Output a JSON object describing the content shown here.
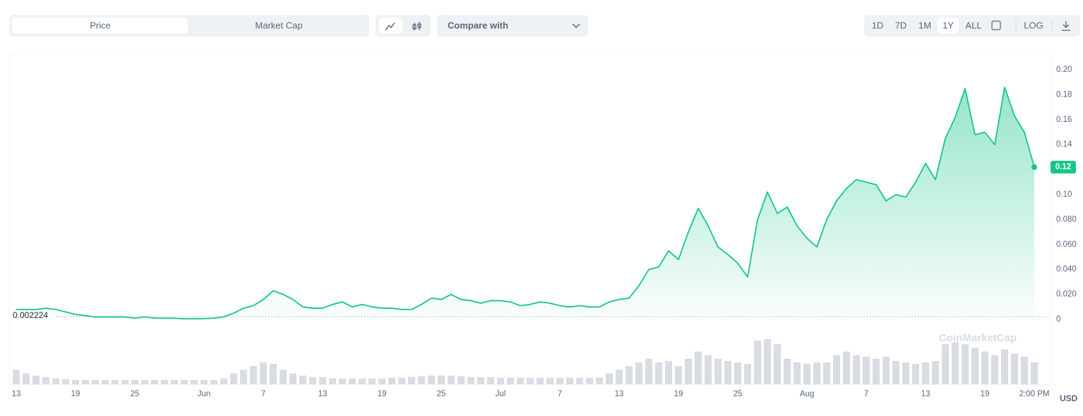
{
  "toolbar": {
    "tabs": [
      "Price",
      "Market Cap"
    ],
    "compare": "Compare with",
    "ranges": [
      "1D",
      "7D",
      "1M",
      "1Y",
      "ALL"
    ],
    "log": "LOG",
    "active_range": "1Y"
  },
  "chart_data": {
    "type": "area",
    "currency": "USD",
    "watermark": "CoinMarketCap",
    "categories": [
      "13",
      null,
      null,
      null,
      null,
      null,
      "19",
      null,
      null,
      null,
      null,
      null,
      "25",
      null,
      null,
      null,
      null,
      null,
      null,
      "Jun",
      null,
      null,
      null,
      null,
      null,
      "7",
      null,
      null,
      null,
      null,
      null,
      "13",
      null,
      null,
      null,
      null,
      null,
      "19",
      null,
      null,
      null,
      null,
      null,
      "25",
      null,
      null,
      null,
      null,
      null,
      "Jul",
      null,
      null,
      null,
      null,
      null,
      "7",
      null,
      null,
      null,
      null,
      null,
      "13",
      null,
      null,
      null,
      null,
      null,
      "19",
      null,
      null,
      null,
      null,
      null,
      "25",
      null,
      null,
      null,
      null,
      null,
      null,
      "Aug",
      null,
      null,
      null,
      null,
      null,
      "7",
      null,
      null,
      null,
      null,
      null,
      "13",
      null,
      null,
      null,
      null,
      null,
      "19",
      null,
      null,
      null,
      null,
      "2:00 PM"
    ],
    "series": [
      {
        "name": "Price",
        "color": "#16c784",
        "below_color": "#ea3943",
        "values": [
          0.008,
          0.008,
          0.008,
          0.009,
          0.008,
          0.006,
          0.004,
          0.003,
          0.002,
          0.002,
          0.002,
          0.002,
          0.001,
          0.002,
          0.001,
          0.001,
          0.001,
          0.0005,
          0.0005,
          0.0006,
          0.001,
          0.002,
          0.005,
          0.009,
          0.011,
          0.016,
          0.023,
          0.02,
          0.016,
          0.01,
          0.009,
          0.009,
          0.012,
          0.014,
          0.01,
          0.012,
          0.01,
          0.009,
          0.009,
          0.008,
          0.008,
          0.012,
          0.017,
          0.016,
          0.02,
          0.016,
          0.015,
          0.013,
          0.015,
          0.015,
          0.014,
          0.011,
          0.012,
          0.014,
          0.013,
          0.011,
          0.01,
          0.011,
          0.01,
          0.01,
          0.014,
          0.016,
          0.017,
          0.027,
          0.04,
          0.042,
          0.055,
          0.048,
          0.07,
          0.089,
          0.075,
          0.058,
          0.052,
          0.045,
          0.034,
          0.08,
          0.102,
          0.085,
          0.09,
          0.075,
          0.065,
          0.058,
          0.08,
          0.095,
          0.105,
          0.112,
          0.11,
          0.108,
          0.095,
          0.1,
          0.098,
          0.11,
          0.125,
          0.112,
          0.145,
          0.162,
          0.185,
          0.148,
          0.15,
          0.14,
          0.186,
          0.163,
          0.15,
          0.122
        ]
      }
    ],
    "volume": {
      "color": "#cfd3db",
      "values": [
        20,
        15,
        12,
        10,
        8,
        7,
        6,
        6,
        6,
        6,
        6,
        6,
        6,
        6,
        6,
        6,
        6,
        6,
        6,
        6,
        6,
        8,
        15,
        20,
        25,
        30,
        28,
        20,
        15,
        12,
        10,
        10,
        8,
        8,
        8,
        8,
        8,
        8,
        9,
        9,
        10,
        11,
        12,
        12,
        12,
        11,
        10,
        10,
        10,
        9,
        9,
        9,
        9,
        9,
        9,
        9,
        9,
        9,
        9,
        9,
        15,
        20,
        25,
        30,
        35,
        30,
        32,
        25,
        35,
        45,
        40,
        35,
        32,
        30,
        28,
        60,
        62,
        55,
        35,
        30,
        28,
        30,
        30,
        40,
        45,
        40,
        38,
        35,
        38,
        32,
        30,
        28,
        30,
        32,
        55,
        58,
        55,
        50,
        45,
        40,
        48,
        42,
        38,
        30
      ]
    },
    "baseline": {
      "value": 0.002224,
      "label": "0.002224"
    },
    "price_label": {
      "value": 0.122,
      "label": "0.12"
    },
    "ylim": [
      0,
      0.2
    ],
    "yticks": [
      0,
      {
        "value": 0.02,
        "label": "0.020"
      },
      {
        "value": 0.04,
        "label": "0.040"
      },
      {
        "value": 0.06,
        "label": "0.060"
      },
      {
        "value": 0.08,
        "label": "0.080"
      },
      {
        "value": 0.1,
        "label": "0.10"
      },
      0.14,
      0.16,
      0.18,
      {
        "value": 0.2,
        "label": "0.20"
      }
    ]
  }
}
